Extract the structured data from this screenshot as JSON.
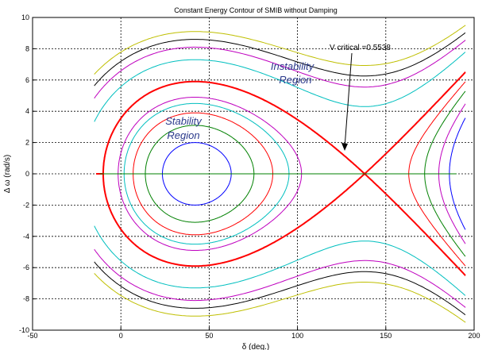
{
  "chart_data": {
    "type": "line",
    "title": "Constant Energy Contour of SMIB without Damping",
    "xlabel": "δ (deg.)",
    "ylabel": "Δ ω (rad/s)",
    "xlim": [
      -50,
      200
    ],
    "ylim": [
      -10,
      10
    ],
    "x_ticks": [
      -50,
      0,
      50,
      100,
      150,
      200
    ],
    "y_ticks": [
      -10,
      -8,
      -6,
      -4,
      -2,
      0,
      2,
      4,
      6,
      8,
      10
    ],
    "grid": true,
    "equilibrium_deg": 42,
    "unstable_equilibrium_deg": 138,
    "series": [
      {
        "kind": "closed",
        "color": "#0000ff",
        "peak": 2.0
      },
      {
        "kind": "closed",
        "color": "#008000",
        "peak": 3.1
      },
      {
        "kind": "closed",
        "color": "#ff0000",
        "peak": 3.9
      },
      {
        "kind": "closed",
        "color": "#00bfbf",
        "peak": 4.5
      },
      {
        "kind": "closed",
        "color": "#bf00bf",
        "peak": 4.9
      },
      {
        "kind": "separatrix",
        "color": "#ff0000",
        "peak": 5.9
      },
      {
        "kind": "open",
        "color": "#bfbf00",
        "top": 9.1,
        "bottom": 7.0
      },
      {
        "kind": "open",
        "color": "#000000",
        "top": 8.6,
        "bottom": 6.4
      },
      {
        "kind": "open",
        "color": "#bf00bf",
        "top": 8.1,
        "bottom": 5.6
      },
      {
        "kind": "open",
        "color": "#00bfbf",
        "top": 7.3,
        "bottom": 3.4
      },
      {
        "kind": "lobe",
        "color": "#0000ff",
        "inner": 186
      },
      {
        "kind": "lobe",
        "color": "#bf00bf",
        "inner": 180
      },
      {
        "kind": "lobe",
        "color": "#008000",
        "inner": 172
      },
      {
        "kind": "lobe",
        "color": "#ff0000",
        "inner": 163
      },
      {
        "kind": "axis",
        "color": "#008000"
      }
    ],
    "annotations": {
      "instability": [
        "Instability",
        "Region"
      ],
      "stability": [
        "Stability",
        "Region"
      ],
      "critical": "V critical =0.5538"
    }
  }
}
